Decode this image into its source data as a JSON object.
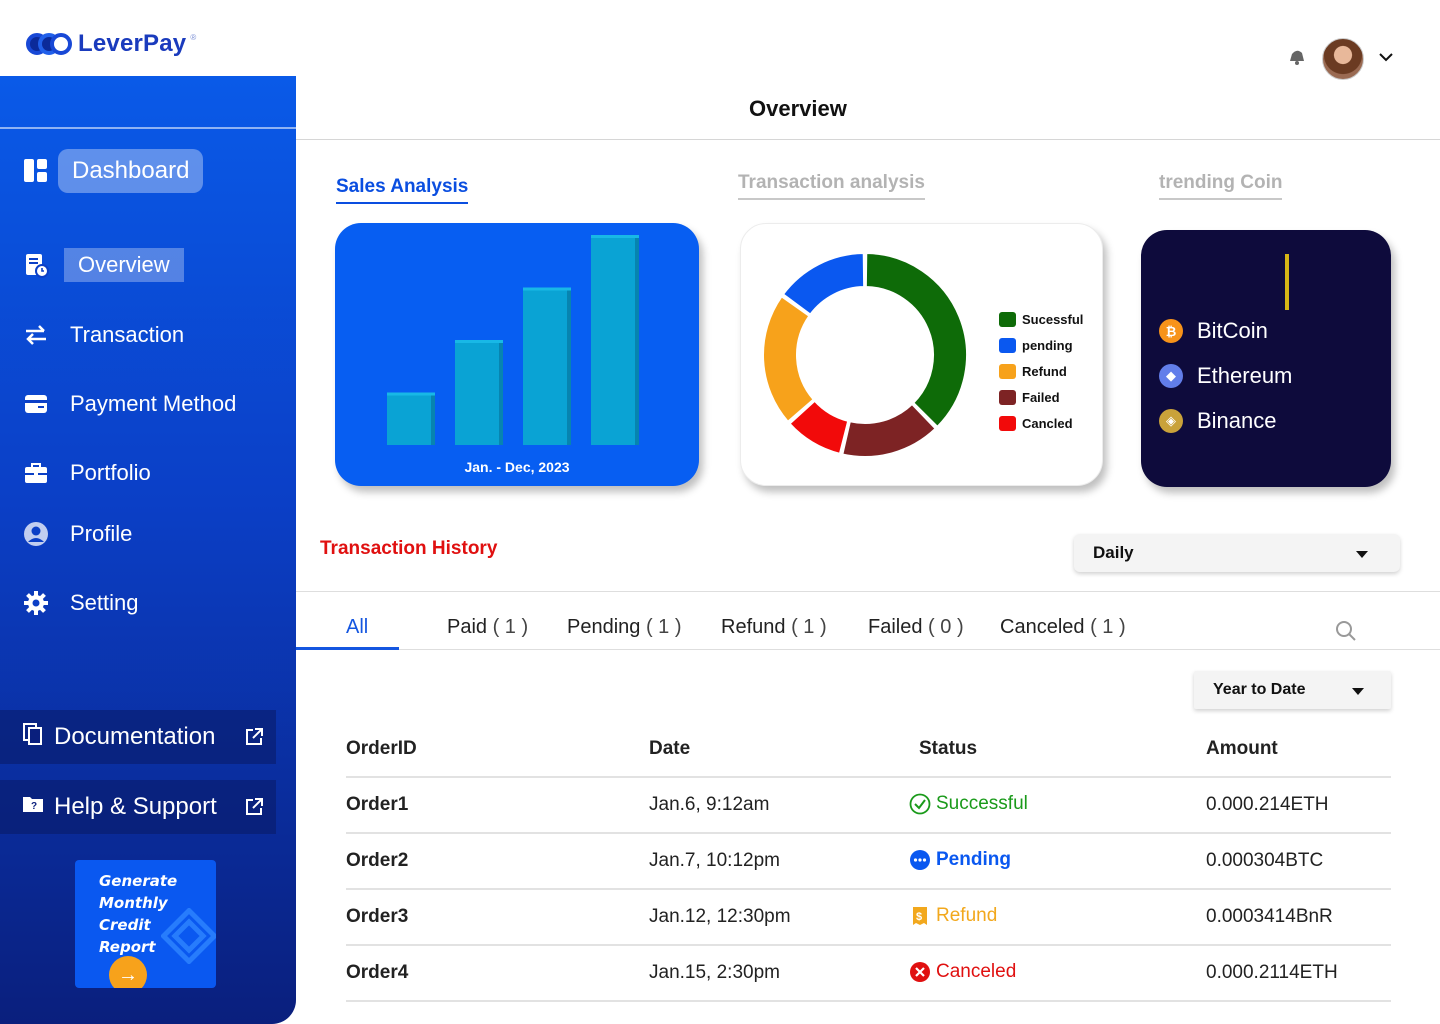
{
  "app": {
    "logo_text": "LeverPay",
    "logo_reg": "®"
  },
  "header": {
    "title": "Overview"
  },
  "sidebar": {
    "dashboard_label": "Dashboard",
    "items": [
      {
        "label": "Overview",
        "icon": "overview-icon",
        "active": true
      },
      {
        "label": "Transaction",
        "icon": "transfer-icon"
      },
      {
        "label": "Payment Method",
        "icon": "wallet-icon"
      },
      {
        "label": "Portfolio",
        "icon": "briefcase-icon"
      },
      {
        "label": "Profile",
        "icon": "user-icon"
      },
      {
        "label": "Setting",
        "icon": "gear-icon"
      }
    ],
    "documentation_label": "Documentation",
    "help_label": "Help & Support",
    "report": {
      "line1": "Generate",
      "line2": "Monthly",
      "line3": "Credit",
      "line4": "Report",
      "arrow": "→"
    }
  },
  "sections": {
    "sales_tab": "Sales Analysis",
    "tx_tab": "Transaction analysis",
    "coin_tab": "trending Coin"
  },
  "sales_card": {
    "caption": "Jan. - Dec, 2023"
  },
  "chart_data": [
    {
      "type": "bar",
      "title": "",
      "categories": [
        "",
        "",
        "",
        ""
      ],
      "values": [
        1,
        2,
        3,
        4
      ],
      "xlabel": "Jan. - Dec, 2023",
      "ylabel": "",
      "ylim": [
        0,
        4
      ],
      "color": "#0aa3d4"
    },
    {
      "type": "pie",
      "title": "",
      "donut": true,
      "series": [
        {
          "name": "Sucessful",
          "value": 35,
          "color": "#0e6b08"
        },
        {
          "name": "Failed",
          "value": 15,
          "color": "#7d2324"
        },
        {
          "name": "Cancled",
          "value": 9,
          "color": "#f20a0a"
        },
        {
          "name": "Refund",
          "value": 20,
          "color": "#f7a21b"
        },
        {
          "name": "pending",
          "value": 14,
          "color": "#0a58f0"
        }
      ],
      "legend_order": [
        "Sucessful",
        "pending",
        "Refund",
        "Failed",
        "Cancled"
      ],
      "legend_placement": "right"
    }
  ],
  "coins": [
    {
      "name": "BitCoin",
      "symbol": "₿",
      "color": "#f7931a",
      "icon": "bitcoin-icon"
    },
    {
      "name": "Ethereum",
      "symbol": "◆",
      "color": "#627eea",
      "icon": "ethereum-icon"
    },
    {
      "name": "Binance",
      "symbol": "◈",
      "color": "#c9a23a",
      "icon": "binance-icon"
    }
  ],
  "history": {
    "title": "Transaction History",
    "period_select": "Daily",
    "range_select": "Year to Date",
    "tabs": [
      {
        "label": "All",
        "count": ""
      },
      {
        "label": "Paid",
        "count": "( 1 )"
      },
      {
        "label": "Pending",
        "count": "( 1 )"
      },
      {
        "label": "Refund",
        "count": "( 1 )"
      },
      {
        "label": "Failed",
        "count": "( 0 )"
      },
      {
        "label": "Canceled",
        "count": "( 1 )"
      }
    ],
    "columns": [
      "OrderID",
      "Date",
      "Status",
      "Amount"
    ],
    "rows": [
      {
        "order": "Order1",
        "date": "Jan.6, 9:12am",
        "status": "Successful",
        "status_color": "#1a9a1a",
        "amount": "0.000.214ETH"
      },
      {
        "order": "Order2",
        "date": "Jan.7, 10:12pm",
        "status": "Pending",
        "status_color": "#0a58f0",
        "amount": "0.000304BTC"
      },
      {
        "order": "Order3",
        "date": "Jan.12, 12:30pm",
        "status": "Refund",
        "status_color": "#f2a81d",
        "amount": "0.0003414BnR"
      },
      {
        "order": "Order4",
        "date": "Jan.15, 2:30pm",
        "status": "Canceled",
        "status_color": "#e01010",
        "amount": "0.000.2114ETH"
      }
    ]
  }
}
